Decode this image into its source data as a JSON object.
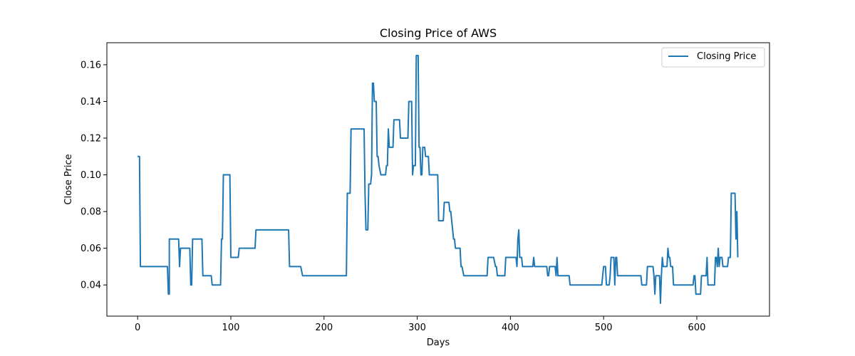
{
  "chart_data": {
    "type": "line",
    "title": "Closing Price of AWS",
    "xlabel": "Days",
    "ylabel": "Close Price",
    "xlim": [
      -33,
      678
    ],
    "ylim": [
      0.023,
      0.172
    ],
    "xticks": [
      0,
      100,
      200,
      300,
      400,
      500,
      600
    ],
    "xtick_labels": [
      "0",
      "100",
      "200",
      "300",
      "400",
      "500",
      "600"
    ],
    "yticks": [
      0.04,
      0.06,
      0.08,
      0.1,
      0.12,
      0.14,
      0.16
    ],
    "ytick_labels": [
      "0.04",
      "0.06",
      "0.08",
      "0.10",
      "0.12",
      "0.14",
      "0.16"
    ],
    "grid": false,
    "legend_position": "top-right",
    "series": [
      {
        "name": "Closing Price",
        "color": "#1f77b4",
        "points": [
          [
            0,
            0.11
          ],
          [
            2,
            0.11
          ],
          [
            3,
            0.05
          ],
          [
            32,
            0.05
          ],
          [
            33,
            0.035
          ],
          [
            34,
            0.035
          ],
          [
            34,
            0.065
          ],
          [
            44,
            0.065
          ],
          [
            45,
            0.05
          ],
          [
            46,
            0.06
          ],
          [
            56,
            0.06
          ],
          [
            57,
            0.04
          ],
          [
            58,
            0.04
          ],
          [
            59,
            0.065
          ],
          [
            69,
            0.065
          ],
          [
            70,
            0.045
          ],
          [
            79,
            0.045
          ],
          [
            80,
            0.04
          ],
          [
            89,
            0.04
          ],
          [
            90,
            0.065
          ],
          [
            91,
            0.065
          ],
          [
            92,
            0.1
          ],
          [
            99,
            0.1
          ],
          [
            100,
            0.055
          ],
          [
            108,
            0.055
          ],
          [
            109,
            0.06
          ],
          [
            126,
            0.06
          ],
          [
            127,
            0.07
          ],
          [
            162,
            0.07
          ],
          [
            163,
            0.05
          ],
          [
            175,
            0.05
          ],
          [
            177,
            0.045
          ],
          [
            224,
            0.045
          ],
          [
            225,
            0.09
          ],
          [
            228,
            0.09
          ],
          [
            229,
            0.125
          ],
          [
            243,
            0.125
          ],
          [
            244,
            0.09
          ],
          [
            245,
            0.07
          ],
          [
            247,
            0.07
          ],
          [
            248,
            0.095
          ],
          [
            250,
            0.095
          ],
          [
            251,
            0.1
          ],
          [
            252,
            0.15
          ],
          [
            253,
            0.15
          ],
          [
            254,
            0.14
          ],
          [
            256,
            0.14
          ],
          [
            257,
            0.11
          ],
          [
            258,
            0.11
          ],
          [
            259,
            0.105
          ],
          [
            261,
            0.1
          ],
          [
            266,
            0.1
          ],
          [
            267,
            0.105
          ],
          [
            268,
            0.105
          ],
          [
            269,
            0.125
          ],
          [
            270,
            0.115
          ],
          [
            274,
            0.115
          ],
          [
            275,
            0.13
          ],
          [
            281,
            0.13
          ],
          [
            282,
            0.12
          ],
          [
            290,
            0.12
          ],
          [
            291,
            0.14
          ],
          [
            294,
            0.14
          ],
          [
            295,
            0.1
          ],
          [
            296,
            0.105
          ],
          [
            298,
            0.105
          ],
          [
            299,
            0.165
          ],
          [
            301,
            0.165
          ],
          [
            302,
            0.115
          ],
          [
            303,
            0.115
          ],
          [
            304,
            0.1
          ],
          [
            305,
            0.1
          ],
          [
            306,
            0.115
          ],
          [
            308,
            0.115
          ],
          [
            309,
            0.11
          ],
          [
            312,
            0.11
          ],
          [
            313,
            0.1
          ],
          [
            322,
            0.1
          ],
          [
            323,
            0.075
          ],
          [
            328,
            0.075
          ],
          [
            329,
            0.085
          ],
          [
            334,
            0.085
          ],
          [
            335,
            0.08
          ],
          [
            336,
            0.08
          ],
          [
            338,
            0.07
          ],
          [
            339,
            0.065
          ],
          [
            340,
            0.065
          ],
          [
            341,
            0.06
          ],
          [
            346,
            0.06
          ],
          [
            347,
            0.05
          ],
          [
            348,
            0.05
          ],
          [
            350,
            0.045
          ],
          [
            375,
            0.045
          ],
          [
            376,
            0.055
          ],
          [
            382,
            0.055
          ],
          [
            384,
            0.05
          ],
          [
            385,
            0.05
          ],
          [
            386,
            0.045
          ],
          [
            394,
            0.045
          ],
          [
            395,
            0.055
          ],
          [
            406,
            0.055
          ],
          [
            407,
            0.05
          ],
          [
            408,
            0.065
          ],
          [
            409,
            0.07
          ],
          [
            410,
            0.055
          ],
          [
            412,
            0.055
          ],
          [
            413,
            0.05
          ],
          [
            424,
            0.05
          ],
          [
            425,
            0.055
          ],
          [
            426,
            0.05
          ],
          [
            439,
            0.05
          ],
          [
            440,
            0.045
          ],
          [
            441,
            0.045
          ],
          [
            442,
            0.05
          ],
          [
            448,
            0.05
          ],
          [
            449,
            0.045
          ],
          [
            450,
            0.055
          ],
          [
            451,
            0.045
          ],
          [
            463,
            0.045
          ],
          [
            464,
            0.04
          ],
          [
            498,
            0.04
          ],
          [
            500,
            0.05
          ],
          [
            502,
            0.05
          ],
          [
            503,
            0.04
          ],
          [
            506,
            0.04
          ],
          [
            507,
            0.045
          ],
          [
            508,
            0.055
          ],
          [
            511,
            0.055
          ],
          [
            512,
            0.04
          ],
          [
            513,
            0.055
          ],
          [
            514,
            0.055
          ],
          [
            515,
            0.045
          ],
          [
            540,
            0.045
          ],
          [
            541,
            0.04
          ],
          [
            546,
            0.04
          ],
          [
            547,
            0.05
          ],
          [
            553,
            0.05
          ],
          [
            554,
            0.045
          ],
          [
            555,
            0.035
          ],
          [
            556,
            0.045
          ],
          [
            560,
            0.045
          ],
          [
            561,
            0.03
          ],
          [
            562,
            0.045
          ],
          [
            563,
            0.055
          ],
          [
            564,
            0.05
          ],
          [
            568,
            0.05
          ],
          [
            569,
            0.06
          ],
          [
            570,
            0.055
          ],
          [
            571,
            0.055
          ],
          [
            572,
            0.05
          ],
          [
            574,
            0.05
          ],
          [
            575,
            0.04
          ],
          [
            596,
            0.04
          ],
          [
            597,
            0.045
          ],
          [
            598,
            0.045
          ],
          [
            599,
            0.035
          ],
          [
            604,
            0.035
          ],
          [
            605,
            0.045
          ],
          [
            610,
            0.045
          ],
          [
            611,
            0.055
          ],
          [
            612,
            0.04
          ],
          [
            619,
            0.04
          ],
          [
            620,
            0.055
          ],
          [
            621,
            0.055
          ],
          [
            622,
            0.05
          ],
          [
            623,
            0.06
          ],
          [
            624,
            0.05
          ],
          [
            625,
            0.055
          ],
          [
            627,
            0.055
          ],
          [
            628,
            0.05
          ],
          [
            633,
            0.05
          ],
          [
            634,
            0.055
          ],
          [
            636,
            0.055
          ],
          [
            637,
            0.09
          ],
          [
            641,
            0.09
          ],
          [
            642,
            0.065
          ],
          [
            643,
            0.08
          ],
          [
            644,
            0.055
          ]
        ]
      }
    ]
  }
}
